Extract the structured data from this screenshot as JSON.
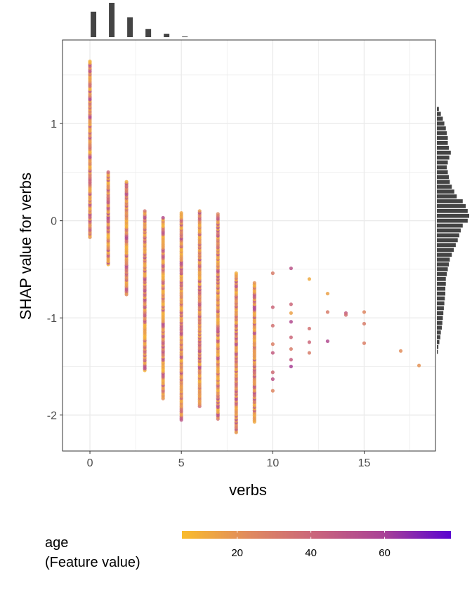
{
  "chart_data": {
    "type": "scatter",
    "title": "",
    "xlabel": "verbs",
    "ylabel": "SHAP value for verbs",
    "xlim": [
      -1.5,
      18.9
    ],
    "ylim": [
      -2.37,
      1.86
    ],
    "x_ticks": [
      0,
      5,
      10,
      15
    ],
    "x_tick_labels": [
      "0",
      "5",
      "10",
      "15"
    ],
    "y_ticks": [
      1,
      0,
      -1,
      -2
    ],
    "y_tick_labels": [
      "1",
      "0",
      "-1",
      "-2"
    ],
    "grid": true,
    "color_feature": "age",
    "legend": {
      "title_line1": "age",
      "title_line2": "(Feature value)",
      "position": "bottom",
      "range": [
        5,
        78
      ],
      "ticks": [
        20,
        40,
        60
      ],
      "tick_labels": [
        "20",
        "40",
        "60"
      ],
      "colors": [
        "#f9bc2c",
        "#e08a5f",
        "#c9647c",
        "#a94296",
        "#5a04d0"
      ]
    },
    "columns": [
      {
        "x": 0,
        "ymin": -0.17,
        "ymax": 1.64
      },
      {
        "x": 1,
        "ymin": -0.45,
        "ymax": 0.5
      },
      {
        "x": 2,
        "ymin": -0.76,
        "ymax": 0.4
      },
      {
        "x": 3,
        "ymin": -1.54,
        "ymax": 0.1
      },
      {
        "x": 4,
        "ymin": -1.83,
        "ymax": 0.03
      },
      {
        "x": 5,
        "ymin": -2.05,
        "ymax": 0.08
      },
      {
        "x": 6,
        "ymin": -1.91,
        "ymax": 0.1
      },
      {
        "x": 7,
        "ymin": -2.04,
        "ymax": 0.07
      },
      {
        "x": 8,
        "ymin": -2.18,
        "ymax": -0.54
      },
      {
        "x": 9,
        "ymin": -2.07,
        "ymax": -0.64
      }
    ],
    "points": [
      {
        "x": 10,
        "y": -0.54,
        "age": 30
      },
      {
        "x": 10,
        "y": -0.89,
        "age": 40
      },
      {
        "x": 10,
        "y": -1.08,
        "age": 35
      },
      {
        "x": 10,
        "y": -1.27,
        "age": 28
      },
      {
        "x": 10,
        "y": -1.36,
        "age": 45
      },
      {
        "x": 10,
        "y": -1.56,
        "age": 38
      },
      {
        "x": 10,
        "y": -1.75,
        "age": 25
      },
      {
        "x": 10,
        "y": -1.63,
        "age": 50
      },
      {
        "x": 11,
        "y": -0.49,
        "age": 50
      },
      {
        "x": 11,
        "y": -0.86,
        "age": 40
      },
      {
        "x": 11,
        "y": -0.95,
        "age": 15
      },
      {
        "x": 11,
        "y": -1.04,
        "age": 55
      },
      {
        "x": 11,
        "y": -1.2,
        "age": 40
      },
      {
        "x": 11,
        "y": -1.32,
        "age": 30
      },
      {
        "x": 11,
        "y": -1.43,
        "age": 45
      },
      {
        "x": 11,
        "y": -1.5,
        "age": 60
      },
      {
        "x": 12,
        "y": -0.6,
        "age": 12
      },
      {
        "x": 12,
        "y": -1.11,
        "age": 35
      },
      {
        "x": 12,
        "y": -1.25,
        "age": 40
      },
      {
        "x": 12,
        "y": -1.36,
        "age": 30
      },
      {
        "x": 13,
        "y": -0.75,
        "age": 15
      },
      {
        "x": 13,
        "y": -0.94,
        "age": 30
      },
      {
        "x": 13,
        "y": -1.24,
        "age": 55
      },
      {
        "x": 14,
        "y": -0.95,
        "age": 45
      },
      {
        "x": 14,
        "y": -0.97,
        "age": 35
      },
      {
        "x": 15,
        "y": -0.94,
        "age": 25
      },
      {
        "x": 15,
        "y": -1.06,
        "age": 30
      },
      {
        "x": 15,
        "y": -1.26,
        "age": 28
      },
      {
        "x": 17,
        "y": -1.34,
        "age": 22
      },
      {
        "x": 18,
        "y": -1.49,
        "age": 20
      }
    ],
    "marginal_x": {
      "bins": [
        0,
        1,
        2,
        3,
        4,
        5
      ],
      "counts": [
        37,
        50,
        29,
        12,
        5,
        1
      ],
      "max_count": 50
    },
    "marginal_y": {
      "bin_width": 0.05,
      "bins_center": [
        1.15,
        1.1,
        1.05,
        1.0,
        0.95,
        0.9,
        0.85,
        0.8,
        0.75,
        0.7,
        0.65,
        0.6,
        0.55,
        0.5,
        0.45,
        0.4,
        0.35,
        0.3,
        0.25,
        0.2,
        0.15,
        0.1,
        0.05,
        0.0,
        -0.05,
        -0.1,
        -0.15,
        -0.2,
        -0.25,
        -0.3,
        -0.35,
        -0.4,
        -0.45,
        -0.5,
        -0.55,
        -0.6,
        -0.65,
        -0.7,
        -0.75,
        -0.8,
        -0.85,
        -0.9,
        -0.95,
        -1.0,
        -1.05,
        -1.1,
        -1.15,
        -1.2,
        -1.25,
        -1.3,
        -1.35
      ],
      "counts": [
        4,
        8,
        12,
        15,
        18,
        20,
        22,
        22,
        24,
        28,
        25,
        22,
        20,
        22,
        24,
        26,
        30,
        35,
        40,
        52,
        58,
        62,
        65,
        62,
        52,
        48,
        45,
        42,
        38,
        34,
        30,
        26,
        24,
        22,
        20,
        18,
        18,
        17,
        17,
        16,
        15,
        14,
        13,
        12,
        11,
        10,
        8,
        7,
        5,
        3,
        2
      ],
      "max_count": 65
    }
  }
}
